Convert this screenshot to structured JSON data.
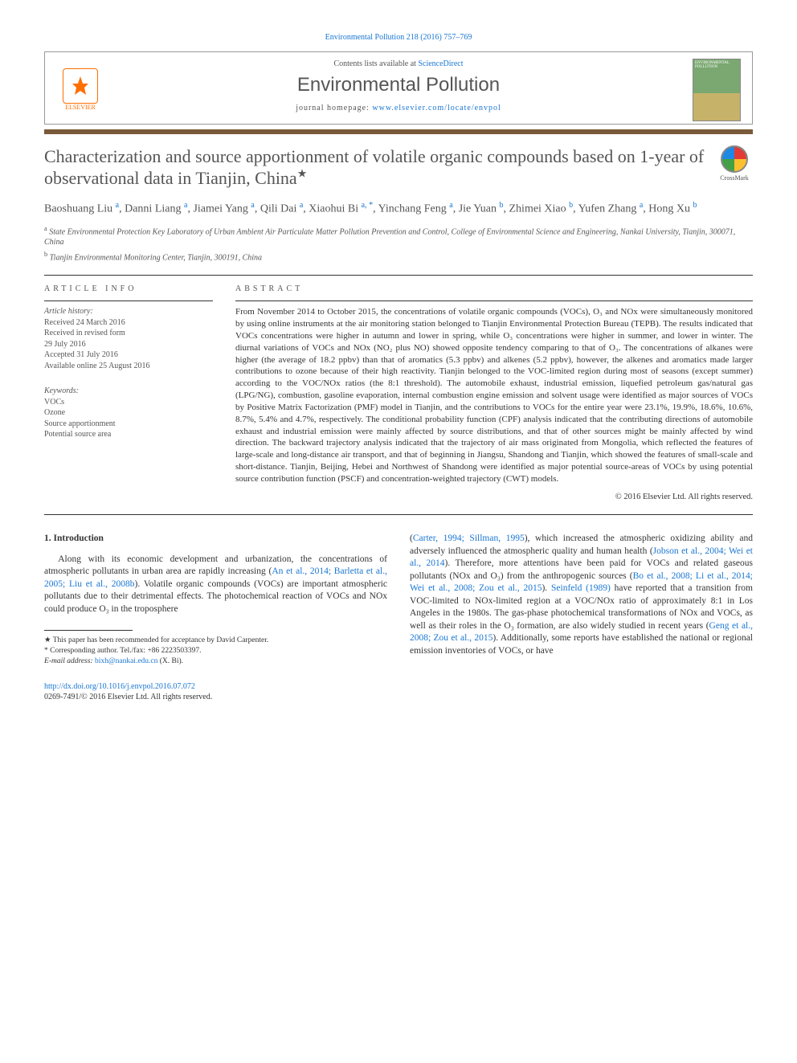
{
  "citation": "Environmental Pollution 218 (2016) 757–769",
  "header": {
    "contents_prefix": "Contents lists available at ",
    "contents_link": "ScienceDirect",
    "journal": "Environmental Pollution",
    "homepage_prefix": "journal homepage: ",
    "homepage_url": "www.elsevier.com/locate/envpol",
    "publisher": "ELSEVIER",
    "cover_label": "ENVIRONMENTAL POLLUTION"
  },
  "title": "Characterization and source apportionment of volatile organic compounds based on 1-year of observational data in Tianjin, China",
  "title_marker": "★",
  "crossmark_label": "CrossMark",
  "authors_html": "Baoshuang Liu <sup>a</sup>, Danni Liang <sup>a</sup>, Jiamei Yang <sup>a</sup>, Qili Dai <sup>a</sup>, Xiaohui Bi <sup>a, *</sup>, Yinchang Feng <sup>a</sup>, Jie Yuan <sup>b</sup>, Zhimei Xiao <sup>b</sup>, Yufen Zhang <sup>a</sup>, Hong Xu <sup>b</sup>",
  "affiliations": [
    {
      "marker": "a",
      "text": "State Environmental Protection Key Laboratory of Urban Ambient Air Particulate Matter Pollution Prevention and Control, College of Environmental Science and Engineering, Nankai University, Tianjin, 300071, China"
    },
    {
      "marker": "b",
      "text": "Tianjin Environmental Monitoring Center, Tianjin, 300191, China"
    }
  ],
  "article_info": {
    "heading": "ARTICLE INFO",
    "history_label": "Article history:",
    "lines": [
      "Received 24 March 2016",
      "Received in revised form",
      "29 July 2016",
      "Accepted 31 July 2016",
      "Available online 25 August 2016"
    ],
    "keywords_label": "Keywords:",
    "keywords": [
      "VOCs",
      "Ozone",
      "Source apportionment",
      "Potential source area"
    ]
  },
  "abstract": {
    "heading": "ABSTRACT",
    "text": "From November 2014 to October 2015, the concentrations of volatile organic compounds (VOCs), O₃ and NOx were simultaneously monitored by using online instruments at the air monitoring station belonged to Tianjin Environmental Protection Bureau (TEPB). The results indicated that VOCs concentrations were higher in autumn and lower in spring, while O₃ concentrations were higher in summer, and lower in winter. The diurnal variations of VOCs and NOx (NO₂ plus NO) showed opposite tendency comparing to that of O₃. The concentrations of alkanes were higher (the average of 18.2 ppbv) than that of aromatics (5.3 ppbv) and alkenes (5.2 ppbv), however, the alkenes and aromatics made larger contributions to ozone because of their high reactivity. Tianjin belonged to the VOC-limited region during most of seasons (except summer) according to the VOC/NOx ratios (the 8:1 threshold). The automobile exhaust, industrial emission, liquefied petroleum gas/natural gas (LPG/NG), combustion, gasoline evaporation, internal combustion engine emission and solvent usage were identified as major sources of VOCs by Positive Matrix Factorization (PMF) model in Tianjin, and the contributions to VOCs for the entire year were 23.1%, 19.9%, 18.6%, 10.6%, 8.7%, 5.4% and 4.7%, respectively. The conditional probability function (CPF) analysis indicated that the contributing directions of automobile exhaust and industrial emission were mainly affected by source distributions, and that of other sources might be mainly affected by wind direction. The backward trajectory analysis indicated that the trajectory of air mass originated from Mongolia, which reflected the features of large-scale and long-distance air transport, and that of beginning in Jiangsu, Shandong and Tianjin, which showed the features of small-scale and short-distance. Tianjin, Beijing, Hebei and Northwest of Shandong were identified as major potential source-areas of VOCs by using potential source contribution function (PSCF) and concentration-weighted trajectory (CWT) models.",
    "copyright": "© 2016 Elsevier Ltd. All rights reserved."
  },
  "sections": {
    "intro_heading": "1. Introduction",
    "col_left": "Along with its economic development and urbanization, the concentrations of atmospheric pollutants in urban area are rapidly increasing (<a class='ref' href='#'>An et al., 2014; Barletta et al., 2005; Liu et al., 2008b</a>). Volatile organic compounds (VOCs) are important atmospheric pollutants due to their detrimental effects. The photochemical reaction of VOCs and NOx could produce O₃ in the troposphere",
    "col_right": "(<a class='ref' href='#'>Carter, 1994; Sillman, 1995</a>), which increased the atmospheric oxidizing ability and adversely influenced the atmospheric quality and human health (<a class='ref' href='#'>Jobson et al., 2004; Wei et al., 2014</a>). Therefore, more attentions have been paid for VOCs and related gaseous pollutants (NOx and O₃) from the anthropogenic sources (<a class='ref' href='#'>Bo et al., 2008; Li et al., 2014; Wei et al., 2008; Zou et al., 2015</a>). <a class='ref' href='#'>Seinfeld (1989)</a> have reported that a transition from VOC-limited to NOx-limited region at a VOC/NOx ratio of approximately 8:1 in Los Angeles in the 1980s. The gas-phase photochemical transformations of NOx and VOCs, as well as their roles in the O₃ formation, are also widely studied in recent years (<a class='ref' href='#'>Geng et al., 2008; Zou et al., 2015</a>). Additionally, some reports have established the national or regional emission inventories of VOCs, or have"
  },
  "footnotes": {
    "recommended": "★ This paper has been recommended for acceptance by David Carpenter.",
    "corresponding": "* Corresponding author. Tel./fax: +86 2223503397.",
    "email_label": "E-mail address:",
    "email": "bixh@nankai.edu.cn",
    "email_suffix": "(X. Bi)."
  },
  "doi": {
    "url": "http://dx.doi.org/10.1016/j.envpol.2016.07.072",
    "issn_line": "0269-7491/© 2016 Elsevier Ltd. All rights reserved."
  },
  "colors": {
    "link": "#1976d2",
    "bar": "#7a5a3a",
    "accent_orange": "#ff6f00",
    "text_gray": "#555"
  }
}
